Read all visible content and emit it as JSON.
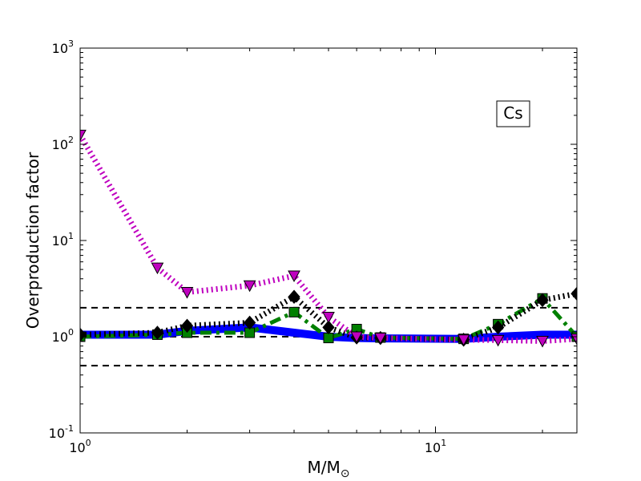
{
  "chart_data": {
    "type": "line",
    "title": "",
    "xlabel": "M/M",
    "xlabel_subscript": "⊙",
    "ylabel": "Overproduction factor",
    "xscale": "log",
    "yscale": "log",
    "xlim": [
      1,
      25
    ],
    "ylim": [
      0.1,
      1000
    ],
    "x_ticks": [
      {
        "value": 1,
        "base": "10",
        "exp": "0"
      },
      {
        "value": 10,
        "base": "10",
        "exp": "1"
      }
    ],
    "y_ticks": [
      {
        "value": 0.1,
        "base": "10",
        "exp": "-1"
      },
      {
        "value": 1,
        "base": "10",
        "exp": "0"
      },
      {
        "value": 10,
        "base": "10",
        "exp": "1"
      },
      {
        "value": 100,
        "base": "10",
        "exp": "2"
      },
      {
        "value": 1000,
        "base": "10",
        "exp": "3"
      }
    ],
    "annotation": "Cs",
    "annotation_position": "top-right",
    "reference_lines": [
      {
        "y": 2,
        "style": "dashed",
        "color": "#000000"
      },
      {
        "y": 1,
        "style": "dashed",
        "color": "#000000"
      },
      {
        "y": 0.5,
        "style": "dashed",
        "color": "#000000"
      }
    ],
    "grid": false,
    "series": [
      {
        "color": "#ff0000",
        "style": "dashed",
        "marker": "none",
        "x": [
          1,
          1.65,
          2,
          3,
          4,
          5,
          6,
          7,
          12,
          15,
          20,
          25
        ],
        "y": [
          1.0,
          1.0,
          1.1,
          1.2,
          1.15,
          1.0,
          0.97,
          0.96,
          0.95,
          0.96,
          0.98,
          1.0
        ]
      },
      {
        "color": "#0000ff",
        "style": "solid",
        "marker": "none",
        "x": [
          1,
          1.65,
          2,
          3,
          4,
          5,
          6,
          7,
          12,
          15,
          20,
          25
        ],
        "y": [
          1.05,
          1.05,
          1.15,
          1.25,
          1.1,
          1.0,
          0.97,
          0.96,
          0.95,
          1.0,
          1.05,
          1.05
        ]
      },
      {
        "color": "#008000",
        "style": "dashdot",
        "marker": "square",
        "x": [
          1,
          1.65,
          2,
          3,
          4,
          5,
          6,
          7,
          12,
          15,
          20,
          25
        ],
        "y": [
          1.0,
          1.05,
          1.1,
          1.1,
          1.8,
          0.97,
          1.2,
          0.98,
          0.95,
          1.35,
          2.5,
          1.0
        ]
      },
      {
        "color": "#000000",
        "style": "dotted",
        "marker": "diamond",
        "x": [
          1,
          1.65,
          2,
          3,
          4,
          5,
          6,
          7,
          12,
          15,
          20,
          25
        ],
        "y": [
          1.05,
          1.1,
          1.3,
          1.4,
          2.6,
          1.25,
          0.98,
          0.97,
          0.93,
          1.25,
          2.4,
          2.8
        ]
      },
      {
        "color": "#bf00bf",
        "style": "dotted",
        "marker": "triangle-down",
        "x": [
          1,
          1.65,
          2,
          3,
          4,
          5,
          6,
          7,
          12,
          15,
          20,
          25
        ],
        "y": [
          125,
          5.2,
          2.9,
          3.4,
          4.3,
          1.6,
          1.0,
          0.97,
          0.93,
          0.92,
          0.9,
          0.95
        ]
      }
    ]
  }
}
